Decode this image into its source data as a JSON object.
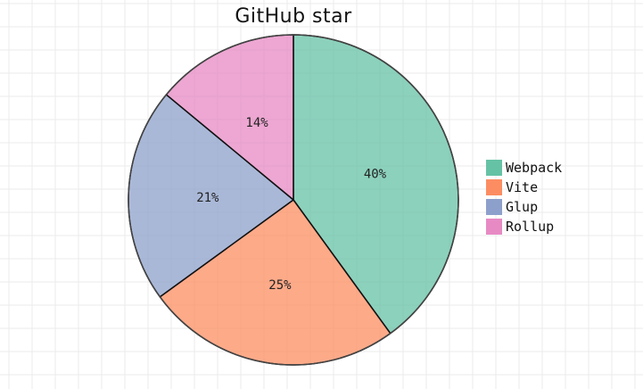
{
  "chart_data": {
    "type": "pie",
    "title": "GitHub star",
    "slices": [
      {
        "label": "Webpack",
        "value": 40,
        "display": "40%",
        "color": "#66c2a5"
      },
      {
        "label": "Vite",
        "value": 25,
        "display": "25%",
        "color": "#fc8d62"
      },
      {
        "label": "Glup",
        "value": 21,
        "display": "21%",
        "color": "#8da0cb"
      },
      {
        "label": "Rollup",
        "value": 14,
        "display": "14%",
        "color": "#e78ac3"
      }
    ],
    "start_angle": "top, clockwise",
    "grid": true,
    "legend": "right"
  }
}
